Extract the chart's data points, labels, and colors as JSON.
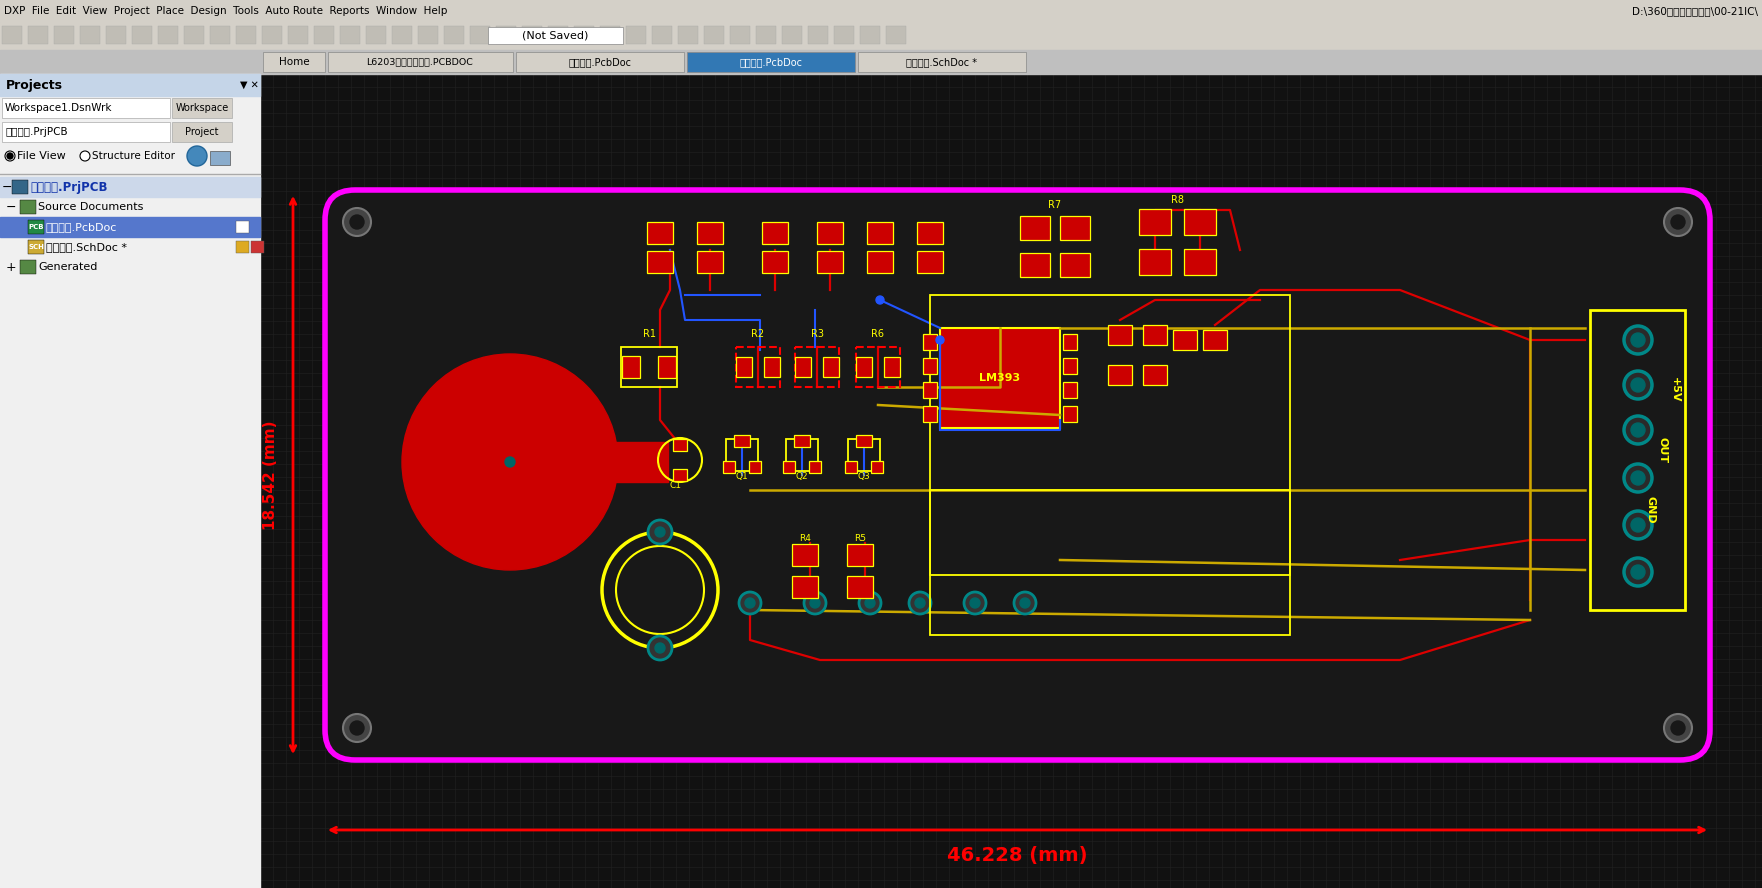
{
  "bg_color": "#111111",
  "grid_color": "#252525",
  "panel_bg": "#f0f0f0",
  "pcb_board_color": "#ff00ff",
  "red_trace": "#ff0000",
  "yellow_trace": "#ffff00",
  "blue_trace": "#0055ff",
  "teal_pad": "#008888",
  "dim_color": "#ff0000",
  "dim_text_width": "46.228 (mm)",
  "dim_text_height": "18.542 (mm)",
  "title_bar_text": "DXP  File  Edit  View  Project  Place  Design  Tools  Auto Route  Reports  Window  Help",
  "tab_labels": [
    "Home",
    "L6203直流电机驱动.PCBDOC",
    "触摸模块.PcbDoc",
    "触摸模块.PcbDoc",
    "触摸模块.SchDoc *"
  ],
  "panel_title": "Projects",
  "workspace_label": "Workspace1.DsnWrk",
  "project_label": "触摸模块.PrjPCB",
  "tree_root": "触摸模块.PrjPCB",
  "not_saved": "(Not Saved)",
  "right_path": "D:\\360安全浏览器下载\\00-21IC\\"
}
